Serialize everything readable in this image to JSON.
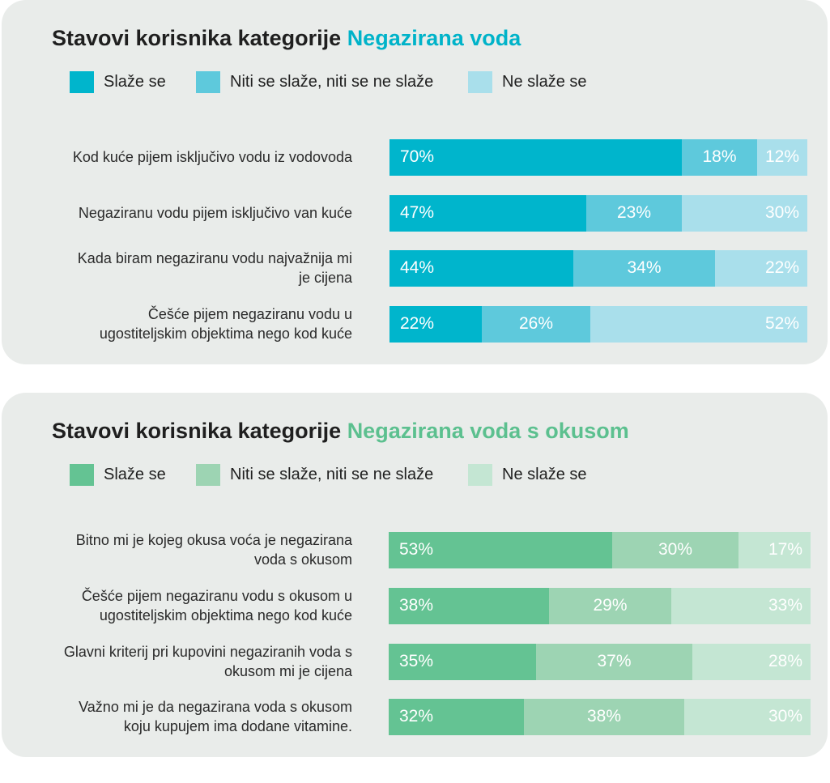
{
  "panels": [
    {
      "title_prefix": "Stavovi korisnika kategorije",
      "title_highlight": "Negazirana voda",
      "highlight_color": "#00b3c9",
      "legend": [
        {
          "label": "Slaže se",
          "color": "#00b5cc"
        },
        {
          "label": "Niti se slaže, niti se ne slaže",
          "color": "#5ec9dc"
        },
        {
          "label": "Ne slaže se",
          "color": "#a9dfeb"
        }
      ]
    },
    {
      "title_prefix": "Stavovi korisnika kategorije",
      "title_highlight": "Negazirana voda s okusom",
      "highlight_color": "#5cc08f",
      "legend": [
        {
          "label": "Slaže se",
          "color": "#64c393"
        },
        {
          "label": "Niti se slaže, niti se ne slaže",
          "color": "#9dd4b3"
        },
        {
          "label": "Ne slaže se",
          "color": "#c4e6d3"
        }
      ]
    }
  ],
  "chart_data": [
    {
      "type": "bar",
      "orientation": "horizontal",
      "stacked": true,
      "unit": "%",
      "title": "Stavovi korisnika kategorije Negazirana voda",
      "categories": [
        [
          "Kod kuće pijem isključivo vodu iz vodovoda"
        ],
        [
          "Negaziranu vodu pijem isključivo van kuće"
        ],
        [
          "Kada biram negaziranu vodu najvažnija mi",
          "je cijena"
        ],
        [
          "Češće pijem negaziranu vodu u",
          "ugostiteljskim objektima nego kod kuće"
        ]
      ],
      "series": [
        {
          "name": "Slaže se",
          "values": [
            70,
            47,
            44,
            22
          ],
          "labels": [
            "70%",
            "47%",
            "44%",
            "22%"
          ]
        },
        {
          "name": "Niti se slaže, niti se ne slaže",
          "values": [
            18,
            23,
            34,
            26
          ],
          "labels": [
            "18%",
            "23%",
            "34%",
            "26%"
          ]
        },
        {
          "name": "Ne slaže se",
          "values": [
            12,
            30,
            22,
            52
          ],
          "labels": [
            "12%",
            "30%",
            "22%",
            "52%"
          ]
        }
      ]
    },
    {
      "type": "bar",
      "orientation": "horizontal",
      "stacked": true,
      "unit": "%",
      "title": "Stavovi korisnika kategorije Negazirana voda s okusom",
      "categories": [
        [
          "Bitno mi je kojeg okusa voća je negazirana",
          "voda s okusom"
        ],
        [
          "Češće pijem negaziranu vodu s okusom u",
          "ugostiteljskim objektima nego kod kuće"
        ],
        [
          "Glavni kriterij pri kupovini negaziranih voda s",
          "okusom mi je cijena"
        ],
        [
          "Važno mi je da negazirana voda s okusom",
          "koju kupujem ima dodane vitamine."
        ]
      ],
      "series": [
        {
          "name": "Slaže se",
          "values": [
            53,
            38,
            35,
            32
          ],
          "labels": [
            "53%",
            "38%",
            "35%",
            "32%"
          ]
        },
        {
          "name": "Niti se slaže, niti se ne slaže",
          "values": [
            30,
            29,
            37,
            38
          ],
          "labels": [
            "30%",
            "29%",
            "37%",
            "38%"
          ]
        },
        {
          "name": "Ne slaže se",
          "values": [
            17,
            33,
            28,
            30
          ],
          "labels": [
            "17%",
            "33%",
            "28%",
            "30%"
          ]
        }
      ]
    }
  ]
}
